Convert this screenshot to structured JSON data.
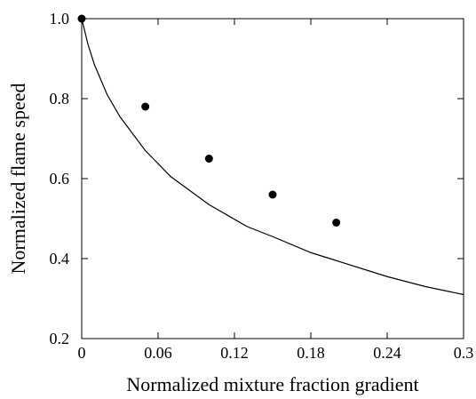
{
  "chart_data": {
    "type": "scatter",
    "xlabel": "Normalized mixture fraction gradient",
    "ylabel": "Normalized flame speed",
    "xlim": [
      0,
      0.3
    ],
    "ylim": [
      0.2,
      1.0
    ],
    "x_ticks": [
      0,
      0.06,
      0.12,
      0.18,
      0.24,
      0.3
    ],
    "x_tick_labels": [
      "0",
      "0.06",
      "0.12",
      "0.18",
      "0.24",
      "0.3"
    ],
    "y_ticks": [
      0.2,
      0.4,
      0.6,
      0.8,
      1.0
    ],
    "y_tick_labels": [
      "0.2",
      "0.4",
      "0.6",
      "0.8",
      "1.0"
    ],
    "grid": false,
    "series": [
      {
        "type": "scatter",
        "x": [
          0,
          0.05,
          0.1,
          0.15,
          0.2
        ],
        "y": [
          1.0,
          0.78,
          0.65,
          0.56,
          0.49
        ]
      },
      {
        "type": "line",
        "x": [
          0,
          0.005,
          0.01,
          0.02,
          0.03,
          0.05,
          0.07,
          0.1,
          0.13,
          0.15,
          0.18,
          0.2,
          0.24,
          0.27,
          0.3
        ],
        "y": [
          1.0,
          0.935,
          0.885,
          0.81,
          0.755,
          0.67,
          0.605,
          0.535,
          0.48,
          0.455,
          0.415,
          0.395,
          0.355,
          0.33,
          0.31
        ]
      }
    ]
  }
}
